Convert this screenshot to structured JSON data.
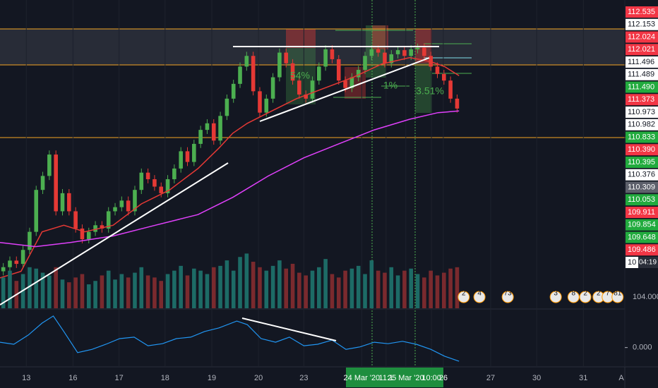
{
  "chart_data": [
    {
      "type": "candlestick",
      "open": [
        109.2,
        109.25,
        109.33,
        109.29,
        109.46,
        109.68,
        110.19,
        110.36,
        110.62,
        109.93,
        110.15,
        109.93,
        109.72,
        109.59,
        109.68,
        109.76,
        109.72,
        109.93,
        109.98,
        110.06,
        109.93,
        110.19,
        110.4,
        110.32,
        110.23,
        110.15,
        110.32,
        110.45,
        110.66,
        110.53,
        110.75,
        110.92,
        111.0,
        110.79,
        111.09,
        111.3,
        111.48,
        111.69,
        111.82,
        111.39,
        111.13,
        111.3,
        111.56,
        111.86,
        111.73,
        111.52,
        111.35,
        111.3,
        111.52,
        111.69,
        111.9,
        111.78,
        111.52,
        111.43,
        111.56,
        111.65,
        111.82,
        111.9,
        111.86,
        111.73,
        111.84,
        111.89,
        111.82,
        111.9,
        111.92,
        111.82,
        111.69,
        111.6,
        111.52,
        111.3
      ],
      "high": [
        109.3,
        109.38,
        109.38,
        109.51,
        109.73,
        110.24,
        110.41,
        110.67,
        110.67,
        110.2,
        110.2,
        109.98,
        109.77,
        109.73,
        109.81,
        109.81,
        109.98,
        110.03,
        110.11,
        110.11,
        110.24,
        110.45,
        110.45,
        110.37,
        110.28,
        110.37,
        110.5,
        110.71,
        110.71,
        110.8,
        110.97,
        111.05,
        111.05,
        111.14,
        111.35,
        111.53,
        111.74,
        111.87,
        111.87,
        111.44,
        111.35,
        111.61,
        111.91,
        111.91,
        111.78,
        111.57,
        111.4,
        111.57,
        111.74,
        111.95,
        111.95,
        111.83,
        111.57,
        111.61,
        111.7,
        111.87,
        111.95,
        111.95,
        111.91,
        111.89,
        111.94,
        111.94,
        111.95,
        111.97,
        111.97,
        111.87,
        111.74,
        111.65,
        111.57,
        111.35
      ],
      "low": [
        109.15,
        109.2,
        109.24,
        109.24,
        109.41,
        109.63,
        110.14,
        110.31,
        109.88,
        109.88,
        109.88,
        109.67,
        109.54,
        109.54,
        109.63,
        109.67,
        109.67,
        109.88,
        109.93,
        109.88,
        109.88,
        110.14,
        110.27,
        110.18,
        110.1,
        110.1,
        110.27,
        110.4,
        110.48,
        110.48,
        110.7,
        110.87,
        110.74,
        110.74,
        111.04,
        111.25,
        111.43,
        111.64,
        111.34,
        111.08,
        111.08,
        111.25,
        111.51,
        111.68,
        111.47,
        111.3,
        111.25,
        111.25,
        111.47,
        111.64,
        111.73,
        111.47,
        111.38,
        111.38,
        111.51,
        111.6,
        111.77,
        111.81,
        111.68,
        111.68,
        111.79,
        111.77,
        111.77,
        111.85,
        111.77,
        111.64,
        111.55,
        111.47,
        111.25,
        111.13
      ],
      "close": [
        109.25,
        109.33,
        109.29,
        109.46,
        109.68,
        110.19,
        110.36,
        110.62,
        109.93,
        110.15,
        109.93,
        109.72,
        109.59,
        109.68,
        109.76,
        109.72,
        109.93,
        109.98,
        110.06,
        109.93,
        110.19,
        110.4,
        110.32,
        110.23,
        110.15,
        110.32,
        110.45,
        110.66,
        110.53,
        110.75,
        110.92,
        111.0,
        110.79,
        111.09,
        111.3,
        111.48,
        111.69,
        111.82,
        111.39,
        111.13,
        111.3,
        111.56,
        111.86,
        111.73,
        111.52,
        111.35,
        111.3,
        111.52,
        111.69,
        111.9,
        111.78,
        111.52,
        111.43,
        111.56,
        111.65,
        111.82,
        111.9,
        111.86,
        111.73,
        111.84,
        111.89,
        111.82,
        111.9,
        111.92,
        111.82,
        111.69,
        111.6,
        111.52,
        111.3,
        111.18
      ],
      "up_color": "#4caf50",
      "down_color": "#e53935",
      "xlim": [
        -0.5,
        94.5
      ],
      "ylim": [
        108.75,
        112.5
      ],
      "xticks": [
        {
          "value": 3.5,
          "label": "13"
        },
        {
          "value": 10.6,
          "label": "16"
        },
        {
          "value": 17.6,
          "label": "17"
        },
        {
          "value": 24.6,
          "label": "18"
        },
        {
          "value": 31.7,
          "label": "19"
        },
        {
          "value": 38.8,
          "label": "20"
        },
        {
          "value": 45.7,
          "label": "23"
        },
        {
          "value": 54.5,
          "label": "24 Mar '20"
        },
        {
          "value": 58.2,
          "label": "11:1"
        },
        {
          "value": 61.2,
          "label": "25 Mar '20"
        },
        {
          "value": 65.1,
          "label": "10:00"
        },
        {
          "value": 66.9,
          "label": "26"
        },
        {
          "value": 74.1,
          "label": "27"
        },
        {
          "value": 81.1,
          "label": "30"
        },
        {
          "value": 88.2,
          "label": "31"
        },
        {
          "value": 94.5,
          "label": "A"
        }
      ],
      "lines": [
        {
          "color": "#e53935",
          "x": [
            -0.5,
            2.7,
            5.9,
            9.2,
            12.4,
            16.7,
            21.0,
            25.3,
            29.6,
            32.8,
            34.9,
            37.1,
            40.3,
            44.6,
            48.9,
            53.2,
            57.5,
            61.8,
            65.0,
            67.1,
            69.3
          ],
          "values": [
            109.12,
            109.2,
            109.68,
            109.76,
            109.68,
            109.76,
            110.02,
            110.19,
            110.45,
            110.7,
            110.88,
            111.0,
            111.13,
            111.3,
            111.43,
            111.56,
            111.72,
            111.8,
            111.75,
            111.69,
            111.58
          ]
        },
        {
          "color": "#e040fb",
          "x": [
            -0.5,
            4.9,
            10.2,
            16.7,
            23.1,
            29.6,
            34.9,
            40.3,
            45.7,
            51.0,
            56.4,
            61.8,
            66.1,
            69.3
          ],
          "values": [
            109.55,
            109.5,
            109.55,
            109.63,
            109.76,
            109.89,
            110.1,
            110.36,
            110.58,
            110.75,
            110.92,
            111.05,
            111.13,
            111.15
          ]
        }
      ],
      "annotations": [
        "54%",
        "1%",
        "3.51%"
      ],
      "price_tags": [
        {
          "label": "112.535",
          "color": "#f23645"
        },
        {
          "label": "112.153",
          "color": "#ffffff"
        },
        {
          "label": "112.024",
          "color": "#f23645"
        },
        {
          "label": "112.021",
          "color": "#f23645"
        },
        {
          "label": "111.496",
          "color": "#ffffff"
        },
        {
          "label": "111.489",
          "color": "#ffffff"
        },
        {
          "label": "111.490",
          "color": "#22ab3e"
        },
        {
          "label": "111.373",
          "color": "#f23645"
        },
        {
          "label": "110.973",
          "color": "#ffffff"
        },
        {
          "label": "110.982",
          "color": "#ffffff"
        },
        {
          "label": "110.833",
          "color": "#22ab3e"
        },
        {
          "label": "110.390",
          "color": "#f23645"
        },
        {
          "label": "110.395",
          "color": "#22ab3e"
        },
        {
          "label": "110.376",
          "color": "#ffffff"
        },
        {
          "label": "110.309",
          "color": "#5d606b"
        },
        {
          "label": "110.053",
          "color": "#22ab3e"
        },
        {
          "label": "109.911",
          "color": "#f23645"
        },
        {
          "label": "109.854",
          "color": "#22ab3e"
        },
        {
          "label": "109.648",
          "color": "#22ab3e"
        },
        {
          "label": "109.486",
          "color": "#f23645"
        },
        {
          "label": "10",
          "color": "#ffffff"
        }
      ],
      "countdown": "04:19",
      "event_markers": {
        "x": [
          70.0,
          72.4,
          76.7,
          84.0,
          86.7,
          88.5,
          90.5,
          91.9,
          93.4
        ],
        "labels": [
          "2",
          "4",
          "73",
          "3",
          "8",
          "2",
          "2",
          "7",
          "81"
        ]
      }
    },
    {
      "type": "bar",
      "values": [
        45,
        55,
        40,
        50,
        60,
        58,
        52,
        48,
        60,
        42,
        38,
        45,
        50,
        35,
        40,
        48,
        55,
        42,
        50,
        45,
        52,
        60,
        48,
        45,
        40,
        50,
        55,
        62,
        48,
        58,
        55,
        50,
        60,
        62,
        70,
        55,
        75,
        80,
        68,
        60,
        55,
        62,
        70,
        58,
        65,
        52,
        48,
        55,
        60,
        72,
        50,
        45,
        55,
        58,
        62,
        50,
        70,
        55,
        52,
        60,
        48,
        55,
        58,
        50,
        45,
        55,
        48,
        52,
        58,
        60
      ],
      "up_color": "#1d6b66",
      "down_color": "#7a2a2e",
      "xlim": [
        -0.5,
        94.5
      ],
      "ylim": [
        0,
        100
      ],
      "axis_label": "104.000"
    },
    {
      "type": "line",
      "color": "#2196f3",
      "x": [
        -0.5,
        1.6,
        3.8,
        5.9,
        7.6,
        9.2,
        11.3,
        13.5,
        15.6,
        17.7,
        19.9,
        22.0,
        24.2,
        26.3,
        28.5,
        30.6,
        32.8,
        35.5,
        37.1,
        39.2,
        41.4,
        43.5,
        45.7,
        47.8,
        50.0,
        52.1,
        54.2,
        56.4,
        58.5,
        60.7,
        62.8,
        65.0,
        67.1,
        69.3
      ],
      "values": [
        0.18,
        0.11,
        0.42,
        0.82,
        1.06,
        0.54,
        -0.17,
        -0.06,
        0.11,
        0.3,
        0.35,
        0.06,
        0.13,
        0.3,
        0.35,
        0.54,
        0.66,
        0.89,
        0.77,
        0.3,
        0.18,
        0.35,
        0.06,
        0.11,
        0.25,
        -0.06,
        0.02,
        0.18,
        0.13,
        0.21,
        0.11,
        -0.06,
        -0.29,
        -0.46
      ],
      "xlim": [
        -0.5,
        94.5
      ],
      "ylim": [
        -0.6,
        1.2
      ],
      "yticks": [
        {
          "value": 0,
          "label": "0.000"
        }
      ]
    }
  ]
}
